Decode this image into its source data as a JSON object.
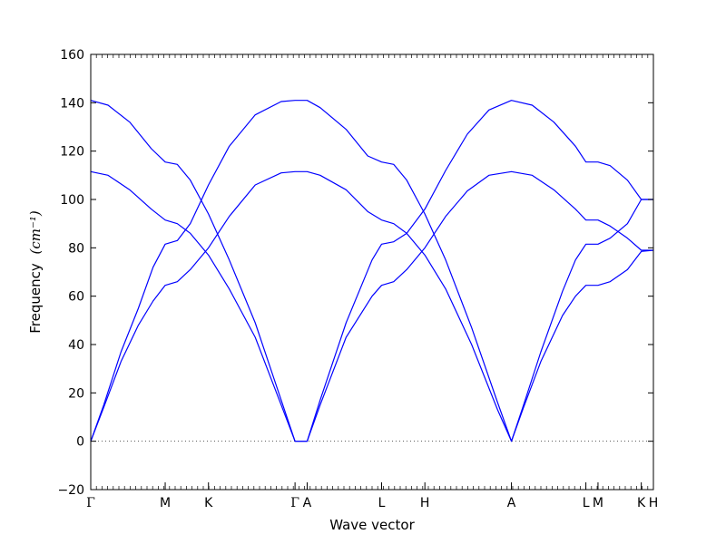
{
  "chart_data": {
    "type": "line",
    "xlabel": "Wave vector",
    "ylabel": "Frequency",
    "ylabel_unit": "(cm⁻¹)",
    "ylim": [
      -20,
      160
    ],
    "yticks": [
      -20,
      0,
      20,
      40,
      60,
      80,
      100,
      120,
      140,
      160
    ],
    "zero_line": true,
    "grid": false,
    "series_color": "#0000ff",
    "xlim": [
      0,
      6.5
    ],
    "xticks": [
      {
        "label": "Γ",
        "x": 0.0
      },
      {
        "label": "M",
        "x": 0.86
      },
      {
        "label": "K",
        "x": 1.36
      },
      {
        "label": "Γ",
        "x": 2.36
      },
      {
        "label": "A",
        "x": 2.5
      },
      {
        "label": "L",
        "x": 3.36
      },
      {
        "label": "H",
        "x": 3.86
      },
      {
        "label": "A",
        "x": 4.86
      },
      {
        "label": "L",
        "x": 5.72
      },
      {
        "label": "M",
        "x": 5.86
      },
      {
        "label": "K",
        "x": 6.36
      },
      {
        "label": "H",
        "x": 6.5
      }
    ],
    "series": [
      {
        "points": [
          [
            0,
            141
          ],
          [
            0.2,
            139
          ],
          [
            0.45,
            132
          ],
          [
            0.7,
            121
          ],
          [
            0.86,
            115.5
          ],
          [
            1.0,
            114.5
          ],
          [
            1.15,
            108
          ],
          [
            1.36,
            94
          ],
          [
            1.6,
            75
          ],
          [
            1.9,
            49
          ],
          [
            2.2,
            17
          ],
          [
            2.36,
            0
          ],
          [
            2.5,
            0
          ],
          [
            2.65,
            17
          ],
          [
            2.95,
            49
          ],
          [
            3.25,
            75
          ],
          [
            3.36,
            81.5
          ],
          [
            3.5,
            82.5
          ],
          [
            3.65,
            86
          ],
          [
            3.86,
            96
          ],
          [
            4.1,
            112
          ],
          [
            4.35,
            127
          ],
          [
            4.6,
            137
          ],
          [
            4.86,
            141
          ],
          [
            5.1,
            139
          ],
          [
            5.35,
            132
          ],
          [
            5.6,
            122
          ],
          [
            5.72,
            115.5
          ],
          [
            5.86,
            115.5
          ],
          [
            6.0,
            114
          ],
          [
            6.2,
            108
          ],
          [
            6.36,
            100
          ],
          [
            6.5,
            100
          ]
        ]
      },
      {
        "points": [
          [
            0,
            111.5
          ],
          [
            0.2,
            110
          ],
          [
            0.45,
            104
          ],
          [
            0.7,
            96
          ],
          [
            0.86,
            91.5
          ],
          [
            1.0,
            90
          ],
          [
            1.15,
            86
          ],
          [
            1.36,
            77
          ],
          [
            1.6,
            63
          ],
          [
            1.9,
            43
          ],
          [
            2.2,
            15
          ],
          [
            2.36,
            0
          ],
          [
            2.5,
            0
          ],
          [
            2.65,
            15
          ],
          [
            2.95,
            43
          ],
          [
            3.25,
            60
          ],
          [
            3.36,
            64.5
          ],
          [
            3.5,
            66
          ],
          [
            3.65,
            71
          ],
          [
            3.86,
            80
          ],
          [
            4.1,
            93
          ],
          [
            4.35,
            103.5
          ],
          [
            4.6,
            110
          ],
          [
            4.86,
            111.5
          ],
          [
            5.1,
            110
          ],
          [
            5.35,
            104
          ],
          [
            5.6,
            96
          ],
          [
            5.72,
            91.5
          ],
          [
            5.86,
            91.5
          ],
          [
            6.0,
            89
          ],
          [
            6.2,
            84
          ],
          [
            6.36,
            79
          ],
          [
            6.5,
            79
          ]
        ]
      },
      {
        "points": [
          [
            0,
            0
          ],
          [
            0.15,
            15
          ],
          [
            0.35,
            37
          ],
          [
            0.55,
            55
          ],
          [
            0.72,
            72
          ],
          [
            0.86,
            81.5
          ],
          [
            1.0,
            83
          ],
          [
            1.15,
            90
          ],
          [
            1.36,
            106
          ],
          [
            1.6,
            122
          ],
          [
            1.9,
            135
          ],
          [
            2.2,
            140.5
          ],
          [
            2.36,
            141
          ],
          [
            2.5,
            141
          ],
          [
            2.65,
            138
          ],
          [
            2.95,
            129
          ],
          [
            3.2,
            118
          ],
          [
            3.36,
            115.5
          ],
          [
            3.5,
            114.5
          ],
          [
            3.65,
            108
          ],
          [
            3.86,
            94
          ],
          [
            4.1,
            75
          ],
          [
            4.4,
            47
          ],
          [
            4.7,
            16
          ],
          [
            4.86,
            0
          ],
          [
            5.0,
            15
          ],
          [
            5.2,
            37
          ],
          [
            5.45,
            62
          ],
          [
            5.6,
            75
          ],
          [
            5.72,
            81.5
          ],
          [
            5.86,
            81.5
          ],
          [
            6.0,
            84
          ],
          [
            6.2,
            90
          ],
          [
            6.36,
            100
          ],
          [
            6.5,
            100
          ]
        ]
      },
      {
        "points": [
          [
            0,
            0
          ],
          [
            0.15,
            14
          ],
          [
            0.35,
            33
          ],
          [
            0.55,
            48
          ],
          [
            0.72,
            58
          ],
          [
            0.86,
            64.5
          ],
          [
            1.0,
            66
          ],
          [
            1.15,
            71
          ],
          [
            1.36,
            80
          ],
          [
            1.6,
            93
          ],
          [
            1.9,
            106
          ],
          [
            2.2,
            111
          ],
          [
            2.36,
            111.5
          ],
          [
            2.5,
            111.5
          ],
          [
            2.65,
            110
          ],
          [
            2.95,
            104
          ],
          [
            3.2,
            95
          ],
          [
            3.36,
            91.5
          ],
          [
            3.5,
            90
          ],
          [
            3.65,
            86
          ],
          [
            3.86,
            77
          ],
          [
            4.1,
            63
          ],
          [
            4.4,
            40
          ],
          [
            4.7,
            13
          ],
          [
            4.86,
            0
          ],
          [
            5.0,
            14
          ],
          [
            5.2,
            33
          ],
          [
            5.45,
            52
          ],
          [
            5.6,
            60
          ],
          [
            5.72,
            64.5
          ],
          [
            5.86,
            64.5
          ],
          [
            6.0,
            66
          ],
          [
            6.2,
            71
          ],
          [
            6.36,
            78.5
          ],
          [
            6.5,
            79
          ]
        ]
      }
    ]
  }
}
